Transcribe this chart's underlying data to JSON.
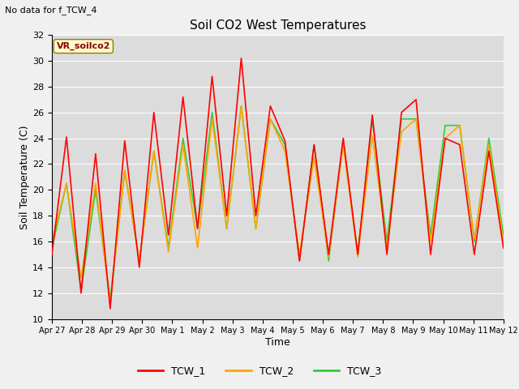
{
  "title": "Soil CO2 West Temperatures",
  "subtitle": "No data for f_TCW_4",
  "xlabel": "Time",
  "ylabel": "Soil Temperature (C)",
  "ylim": [
    10,
    32
  ],
  "annotation": "VR_soilco2",
  "bg_color": "#dcdcdc",
  "grid_color": "#ffffff",
  "fig_color": "#f0f0f0",
  "series": {
    "TCW_1": {
      "color": "#ff0000",
      "lw": 1.2
    },
    "TCW_2": {
      "color": "#ffa500",
      "lw": 1.2
    },
    "TCW_3": {
      "color": "#32cd32",
      "lw": 1.2
    }
  },
  "x_tick_labels": [
    "Apr 27",
    "Apr 28",
    "Apr 29",
    "Apr 30",
    "May 1",
    "May 2",
    "May 3",
    "May 4",
    "May 5",
    "May 6",
    "May 7",
    "May 8",
    "May 9",
    "May 10",
    "May 11",
    "May 12"
  ],
  "yticks": [
    10,
    12,
    14,
    16,
    18,
    20,
    22,
    24,
    26,
    28,
    30,
    32
  ],
  "tcw1": [
    15.0,
    24.1,
    12.0,
    22.8,
    10.8,
    23.8,
    14.0,
    26.0,
    16.5,
    27.2,
    17.0,
    28.8,
    18.0,
    30.2,
    18.0,
    26.5,
    23.8,
    14.5,
    23.5,
    15.0,
    24.0,
    15.0,
    25.8,
    15.0,
    26.0,
    27.0,
    15.0,
    24.0,
    23.5,
    15.0,
    23.0,
    15.5
  ],
  "tcw2": [
    16.0,
    20.5,
    13.2,
    20.5,
    11.2,
    21.5,
    14.5,
    23.0,
    15.2,
    23.5,
    15.5,
    25.5,
    17.0,
    26.5,
    17.0,
    25.5,
    23.0,
    15.0,
    22.5,
    14.8,
    23.5,
    14.8,
    24.2,
    15.5,
    24.5,
    25.5,
    16.0,
    24.0,
    25.0,
    16.2,
    23.5,
    16.0
  ],
  "tcw3": [
    15.5,
    20.5,
    12.2,
    20.0,
    11.5,
    21.5,
    14.5,
    23.0,
    15.5,
    24.0,
    17.0,
    26.0,
    17.0,
    26.5,
    17.0,
    25.5,
    23.5,
    14.5,
    23.5,
    14.5,
    23.8,
    15.0,
    25.5,
    16.0,
    25.5,
    25.5,
    16.5,
    25.0,
    25.0,
    16.0,
    24.0,
    16.5
  ]
}
